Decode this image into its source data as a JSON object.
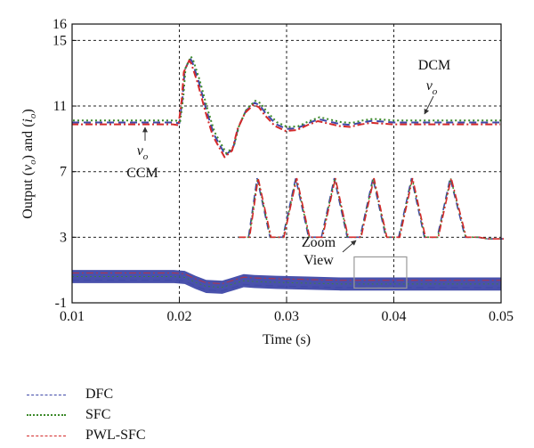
{
  "chart_data": {
    "type": "line",
    "title": "",
    "xlabel": "Time (s)",
    "ylabel": "Output (v_o) and (i_o)",
    "ylabel_parts": {
      "pre": "Output (",
      "v": "v",
      "v_sub": "o",
      "mid": ") and (",
      "i": "i",
      "i_sub": "o",
      "post": ")"
    },
    "xlim": [
      0.01,
      0.05
    ],
    "ylim": [
      -1,
      16
    ],
    "x_ticks": [
      "0.01",
      "0.02",
      "0.03",
      "0.04",
      "0.05"
    ],
    "x_tick_values": [
      0.01,
      0.02,
      0.03,
      0.04,
      0.05
    ],
    "y_ticks": [
      "-1",
      "3",
      "7",
      "11",
      "15",
      "16"
    ],
    "y_tick_values": [
      -1,
      3,
      7,
      11,
      15,
      16
    ],
    "grid": true,
    "legend_position": "below-left",
    "series": [
      {
        "name": "DFC",
        "color": "#3f48a8",
        "dash": "8,5"
      },
      {
        "name": "SFC",
        "color": "#3c8a2a",
        "dash": "2,3"
      },
      {
        "name": "PWL-SFC",
        "color": "#d42a2a",
        "dash": "8,3,2,3"
      }
    ],
    "output_voltage": {
      "x": [
        0.01,
        0.0195,
        0.02,
        0.0203,
        0.0205,
        0.021,
        0.0212,
        0.0218,
        0.0225,
        0.0232,
        0.0243,
        0.025,
        0.0255,
        0.0262,
        0.027,
        0.0275,
        0.028,
        0.029,
        0.03,
        0.031,
        0.032,
        0.033,
        0.034,
        0.035,
        0.036,
        0.037,
        0.038,
        0.039,
        0.04,
        0.045,
        0.05
      ],
      "y": [
        10.0,
        10.0,
        9.95,
        11.5,
        13.2,
        13.9,
        13.7,
        12.5,
        10.8,
        9.3,
        8.0,
        8.4,
        9.7,
        10.7,
        11.2,
        11.05,
        10.6,
        9.9,
        9.6,
        9.65,
        9.95,
        10.2,
        10.05,
        9.9,
        9.85,
        10.0,
        10.1,
        10.05,
        10.0,
        10.0,
        10.0
      ]
    },
    "output_current": {
      "x": [
        0.01,
        0.0195,
        0.0205,
        0.0215,
        0.0225,
        0.024,
        0.025,
        0.026,
        0.027,
        0.029,
        0.032,
        0.035,
        0.04,
        0.05
      ],
      "y": [
        0.6,
        0.6,
        0.55,
        0.25,
        0.0,
        -0.05,
        0.15,
        0.35,
        0.3,
        0.25,
        0.2,
        0.15,
        0.15,
        0.15
      ],
      "band": 0.8
    },
    "zoom_waveform": {
      "x": [
        0.0255,
        0.0265,
        0.0273,
        0.0285,
        0.0297,
        0.0309,
        0.0321,
        0.0333,
        0.0345,
        0.0357,
        0.0369,
        0.0381,
        0.0393,
        0.0405,
        0.0417,
        0.0429,
        0.0441,
        0.0453,
        0.0467,
        0.0479,
        0.0487,
        0.0502
      ],
      "y": [
        3.0,
        3.0,
        6.6,
        3.0,
        3.0,
        6.6,
        3.0,
        3.0,
        6.6,
        3.0,
        3.0,
        6.6,
        3.0,
        3.0,
        6.6,
        3.0,
        3.0,
        6.6,
        3.0,
        3.0,
        2.9,
        2.9
      ]
    },
    "zoom_box": {
      "x": [
        0.0363,
        0.0412
      ],
      "y": [
        -0.1,
        1.8
      ]
    },
    "annotations": {
      "ccm": "CCM",
      "dcm": "DCM",
      "vo_symbol": "v",
      "vo_sub": "o",
      "zoom_line1": "Zoom",
      "zoom_line2": "View"
    }
  }
}
